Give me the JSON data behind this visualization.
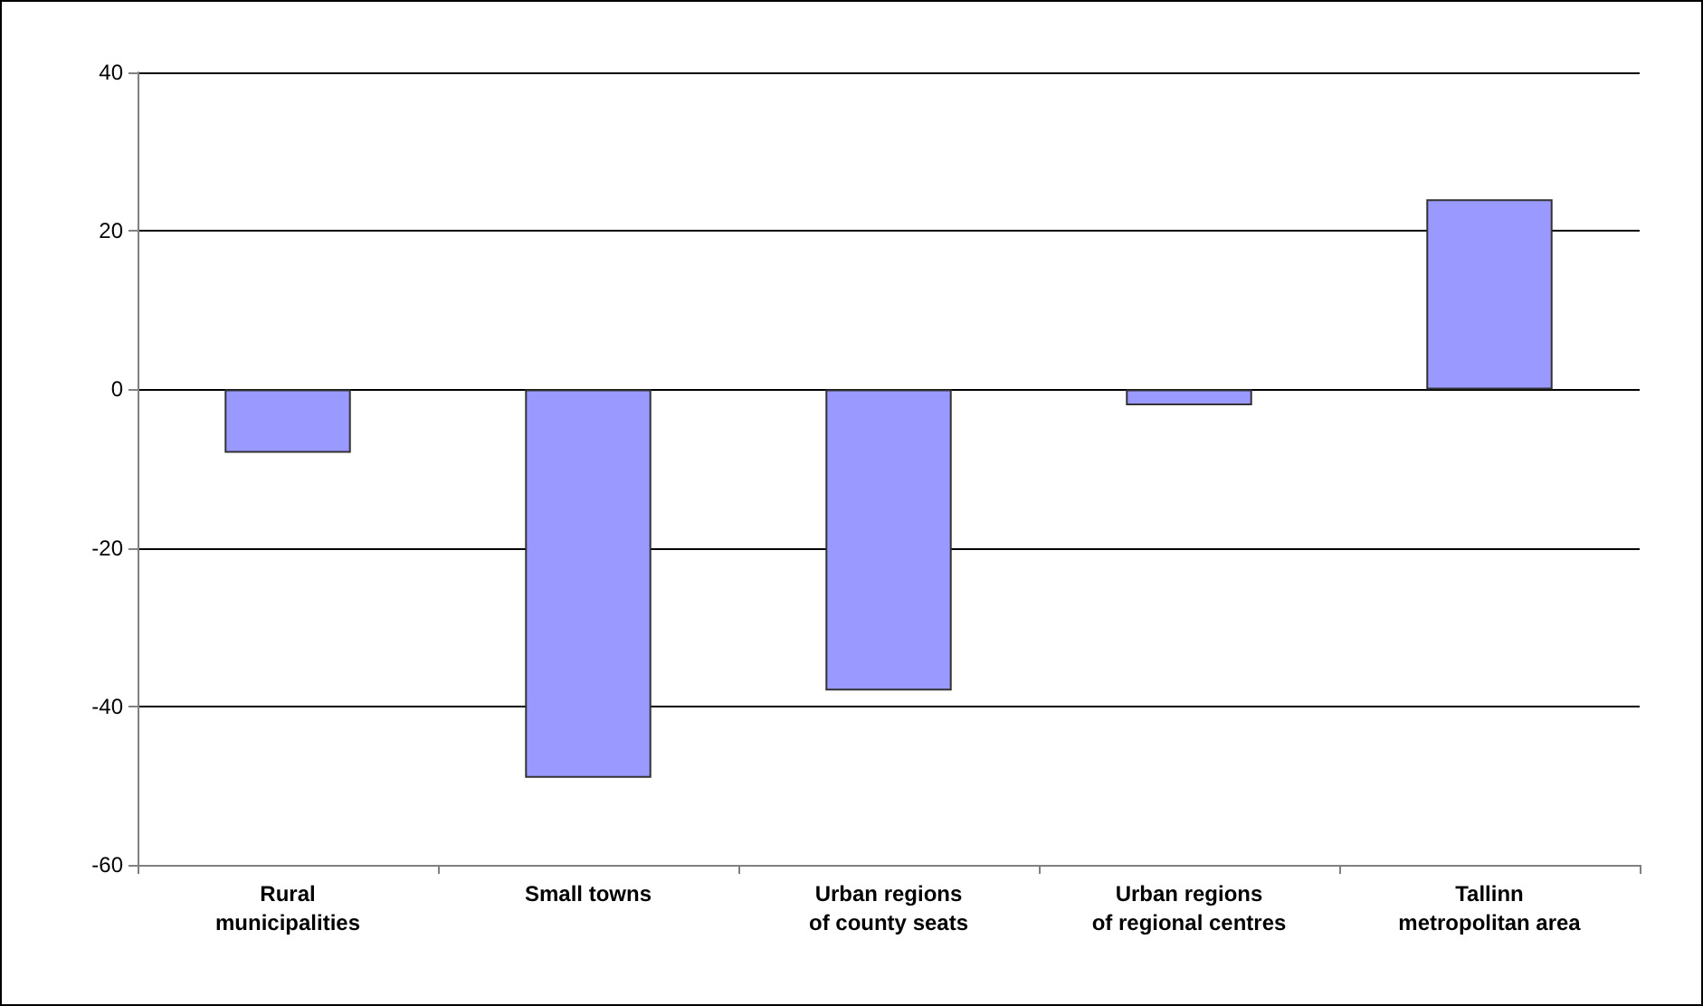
{
  "chart_data": {
    "type": "bar",
    "categories": [
      "Rural\nmunicipalities",
      "Small towns",
      "Urban regions\nof county seats",
      "Urban regions\nof regional centres",
      "Tallinn\nmetropolitan area"
    ],
    "values": [
      -8,
      -49,
      -38,
      -2,
      24
    ],
    "color": "#9999ff",
    "ylim": [
      -60,
      40
    ],
    "yticks": [
      -60,
      -40,
      -20,
      0,
      20,
      40
    ],
    "grid": "y"
  }
}
